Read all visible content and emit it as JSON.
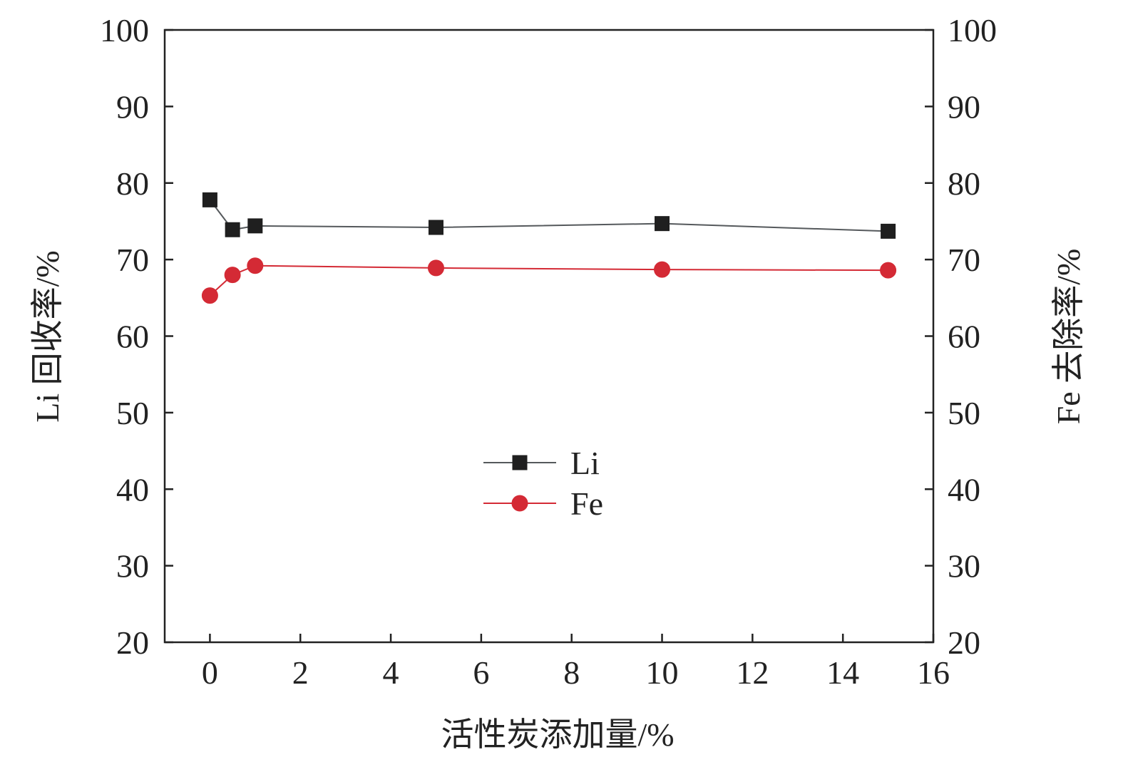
{
  "chart_data": {
    "type": "line",
    "title": "",
    "xlabel": "活性炭添加量/%",
    "ylabel_left": "Li 回收率/%",
    "ylabel_right": "Fe 去除率/%",
    "xlim": [
      -1,
      16
    ],
    "ylim": [
      20,
      100
    ],
    "x_ticks": [
      "0",
      "2",
      "4",
      "6",
      "8",
      "10",
      "12",
      "14",
      "16"
    ],
    "y_ticks": [
      "20",
      "30",
      "40",
      "50",
      "60",
      "70",
      "80",
      "90",
      "100"
    ],
    "grid": false,
    "legend_position": "center",
    "series": [
      {
        "name": "Li",
        "axis": "left",
        "marker": "square",
        "color": "#1f1f1f",
        "line_color": "#55595c",
        "x": [
          0,
          0.5,
          1,
          5,
          10,
          15
        ],
        "y": [
          77.8,
          73.9,
          74.4,
          74.2,
          74.7,
          73.7
        ]
      },
      {
        "name": "Fe",
        "axis": "right",
        "marker": "circle",
        "color": "#d42a35",
        "line_color": "#d42a35",
        "x": [
          0,
          0.5,
          1,
          5,
          10,
          15
        ],
        "y": [
          65.3,
          68.0,
          69.2,
          68.9,
          68.7,
          68.6
        ]
      }
    ]
  }
}
